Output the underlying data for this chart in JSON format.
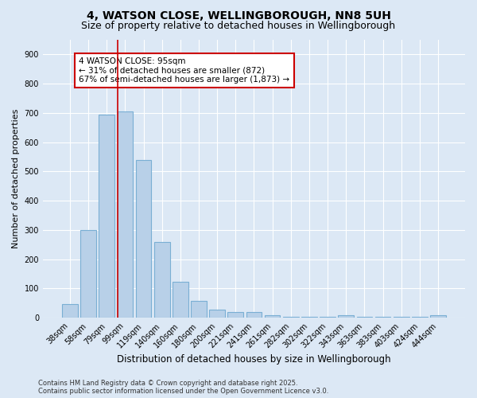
{
  "title": "4, WATSON CLOSE, WELLINGBOROUGH, NN8 5UH",
  "subtitle": "Size of property relative to detached houses in Wellingborough",
  "xlabel": "Distribution of detached houses by size in Wellingborough",
  "ylabel": "Number of detached properties",
  "categories": [
    "38sqm",
    "58sqm",
    "79sqm",
    "99sqm",
    "119sqm",
    "140sqm",
    "160sqm",
    "180sqm",
    "200sqm",
    "221sqm",
    "241sqm",
    "261sqm",
    "282sqm",
    "302sqm",
    "322sqm",
    "343sqm",
    "363sqm",
    "383sqm",
    "403sqm",
    "424sqm",
    "444sqm"
  ],
  "values": [
    47,
    300,
    693,
    706,
    538,
    260,
    122,
    58,
    28,
    20,
    20,
    8,
    2,
    2,
    2,
    9,
    2,
    2,
    2,
    2,
    9
  ],
  "bar_color": "#b8d0e8",
  "bar_edge_color": "#7aafd4",
  "vline_index": 3,
  "vline_color": "#cc0000",
  "annotation_text": "4 WATSON CLOSE: 95sqm\n← 31% of detached houses are smaller (872)\n67% of semi-detached houses are larger (1,873) →",
  "annotation_box_color": "#ffffff",
  "annotation_box_edge_color": "#cc0000",
  "ylim": [
    0,
    950
  ],
  "yticks": [
    0,
    100,
    200,
    300,
    400,
    500,
    600,
    700,
    800,
    900
  ],
  "background_color": "#dce8f5",
  "grid_color": "#ffffff",
  "footer_text": "Contains HM Land Registry data © Crown copyright and database right 2025.\nContains public sector information licensed under the Open Government Licence v3.0.",
  "title_fontsize": 10,
  "subtitle_fontsize": 9,
  "ylabel_fontsize": 8,
  "xlabel_fontsize": 8.5,
  "tick_fontsize": 7,
  "annot_fontsize": 7.5,
  "footer_fontsize": 6
}
